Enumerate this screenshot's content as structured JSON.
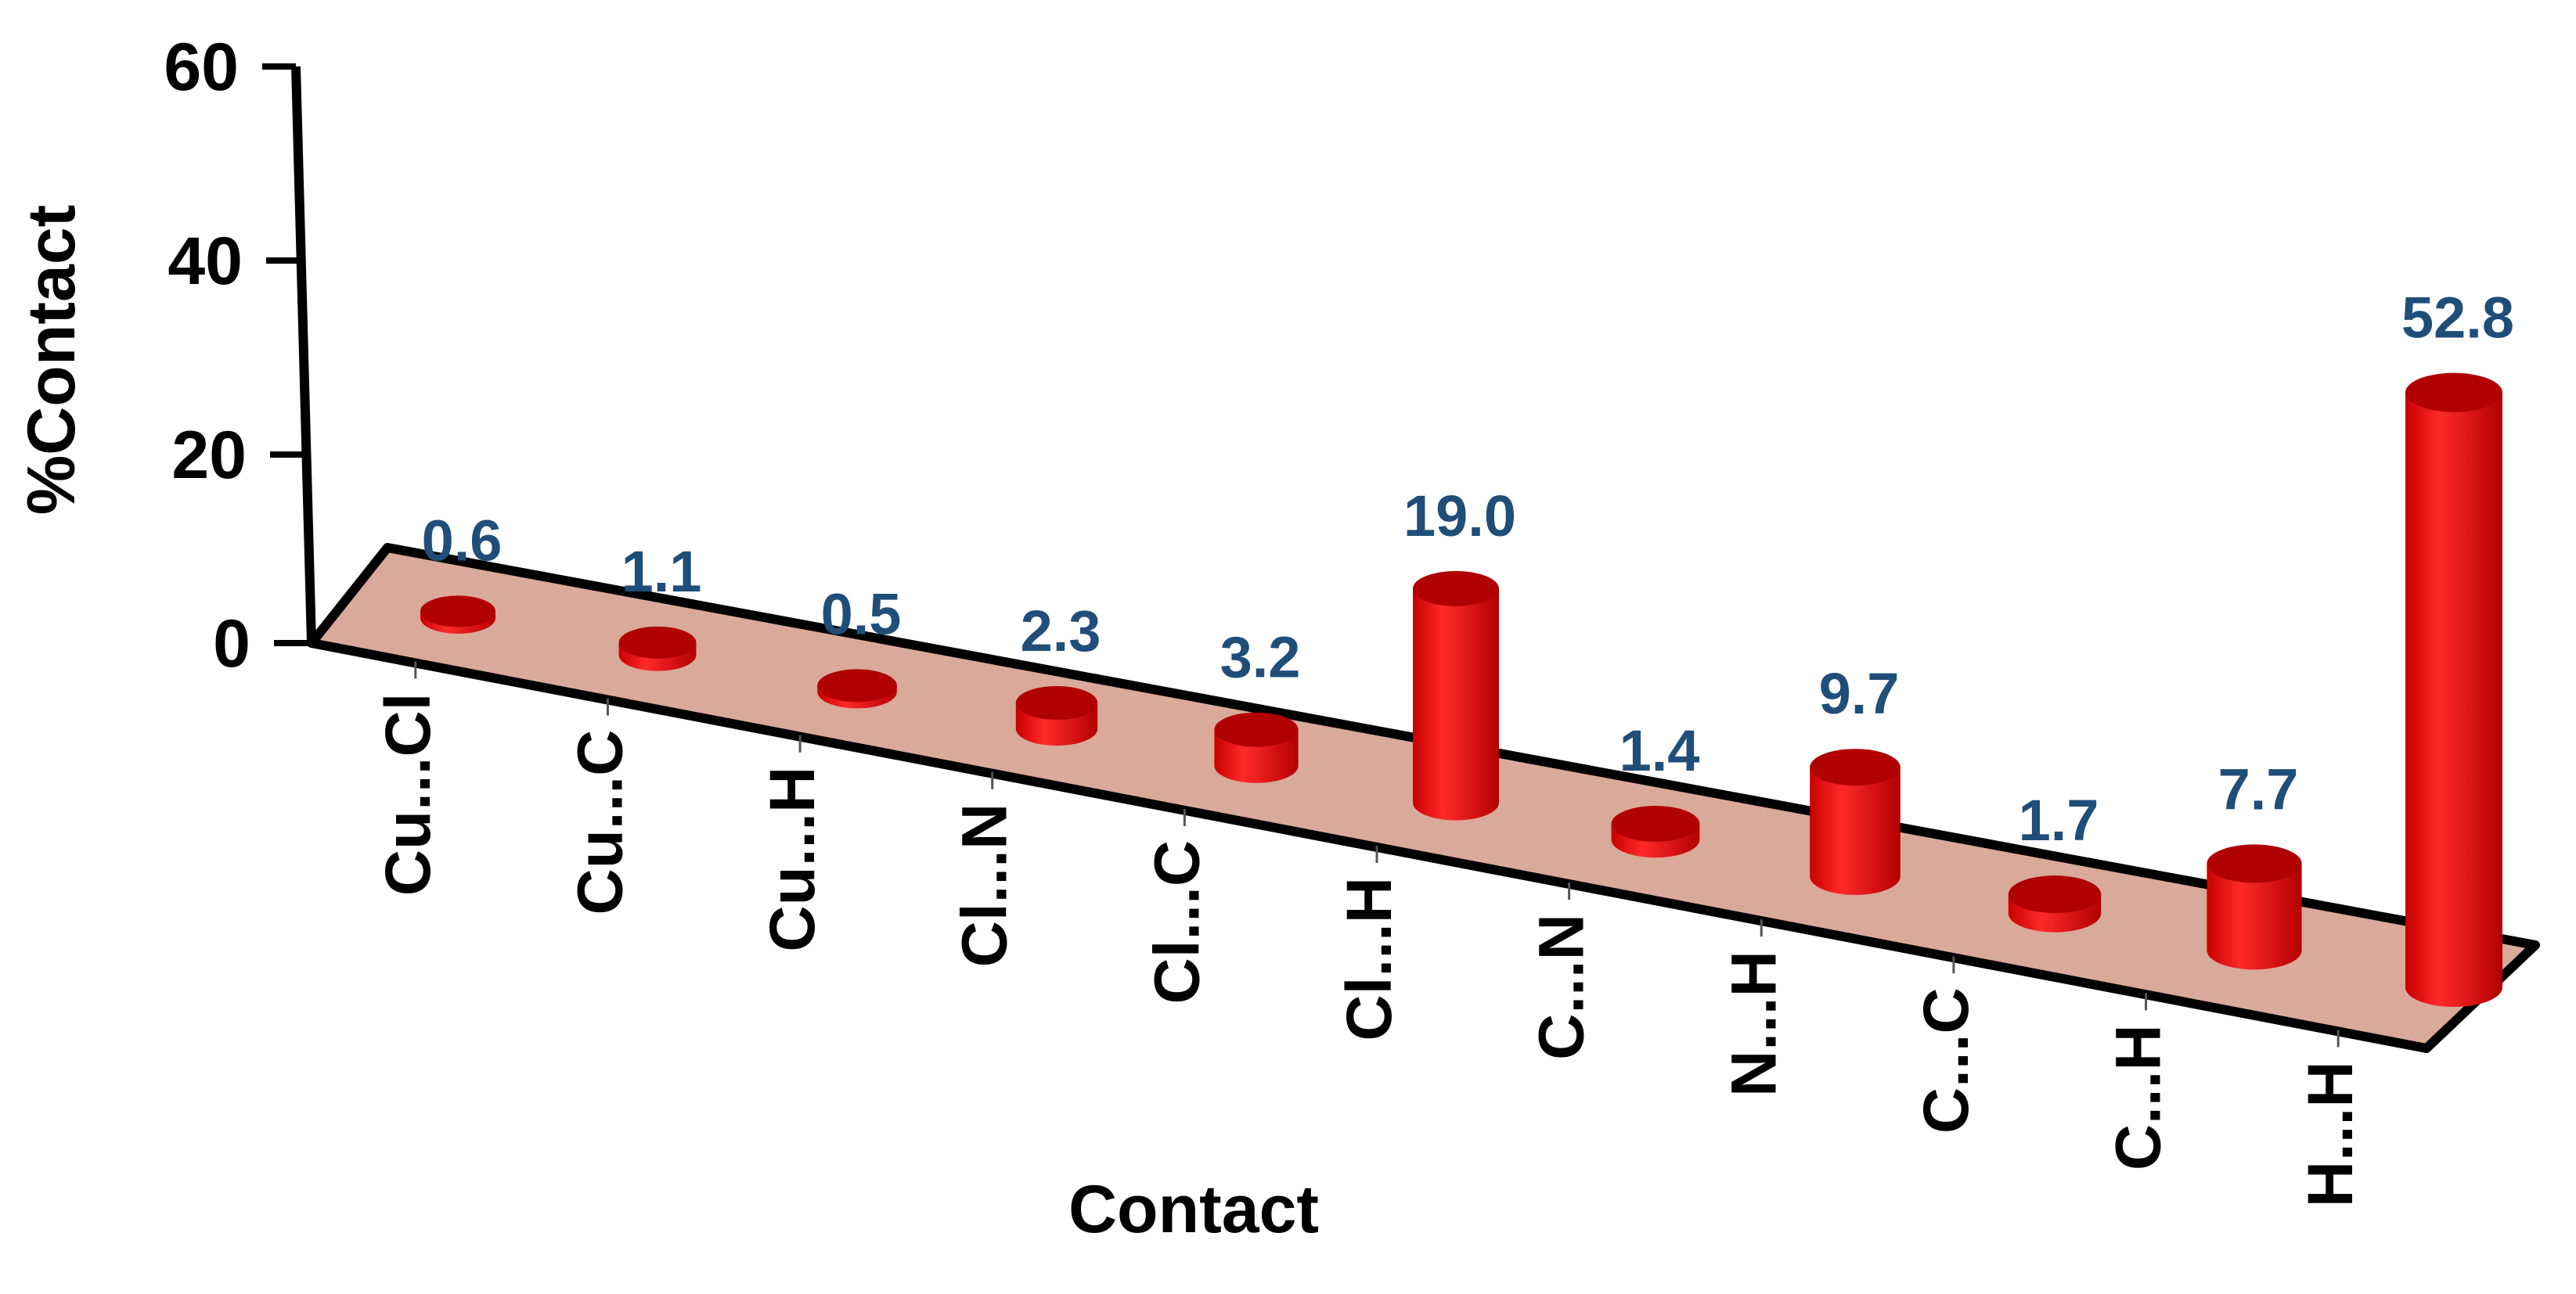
{
  "chart_data": {
    "type": "bar",
    "style": "3d-cylinder",
    "xlabel": "Contact",
    "ylabel": "%Contact",
    "ylim": [
      0,
      60
    ],
    "yticks": [
      "0",
      "20",
      "40",
      "60"
    ],
    "categories": [
      "Cu...Cl",
      "Cu...C",
      "Cu...H",
      "Cl...N",
      "Cl...C",
      "Cl...H",
      "C...N",
      "N...H",
      "C...C",
      "C...H",
      "H...H"
    ],
    "values": [
      0.6,
      1.1,
      0.5,
      2.3,
      3.2,
      19.0,
      1.4,
      9.7,
      1.7,
      7.7,
      52.8
    ],
    "value_labels": [
      "0.6",
      "1.1",
      "0.5",
      "2.3",
      "3.2",
      "19.0",
      "1.4",
      "9.7",
      "1.7",
      "7.7",
      "52.8"
    ],
    "grid": false,
    "legend": "none",
    "colors": {
      "bar": "#ee1111",
      "bar_dark": "#b00000",
      "floor": "#d9a99a",
      "label": "#1f4e79"
    }
  }
}
